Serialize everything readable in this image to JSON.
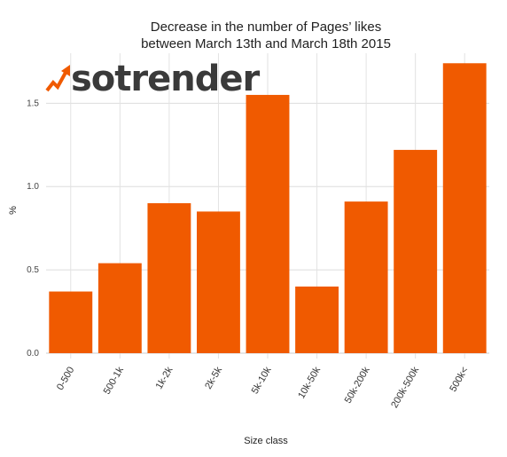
{
  "logo": {
    "text": "sotrender",
    "color": "#3a3a3a",
    "icon": "rising-arrow-icon",
    "icon_color": "#f05a00"
  },
  "chart_data": {
    "type": "bar",
    "title": [
      "Decrease in the number of Pages’ likes",
      "between March 13th and March 18th 2015"
    ],
    "xlabel": "Size class",
    "ylabel": "%",
    "categories": [
      "0-500",
      "500-1k",
      "1k-2k",
      "2k-5k",
      "5k-10k",
      "10k-50k",
      "50k-200k",
      "200k-500k",
      "500k<"
    ],
    "values": [
      0.37,
      0.54,
      0.9,
      0.85,
      1.55,
      0.4,
      0.91,
      1.22,
      1.74
    ],
    "ylim": [
      0,
      1.8
    ],
    "yticks": [
      "0.0",
      "0.5",
      "1.0",
      "1.5"
    ],
    "bar_color": "#f05a00",
    "grid": true
  }
}
